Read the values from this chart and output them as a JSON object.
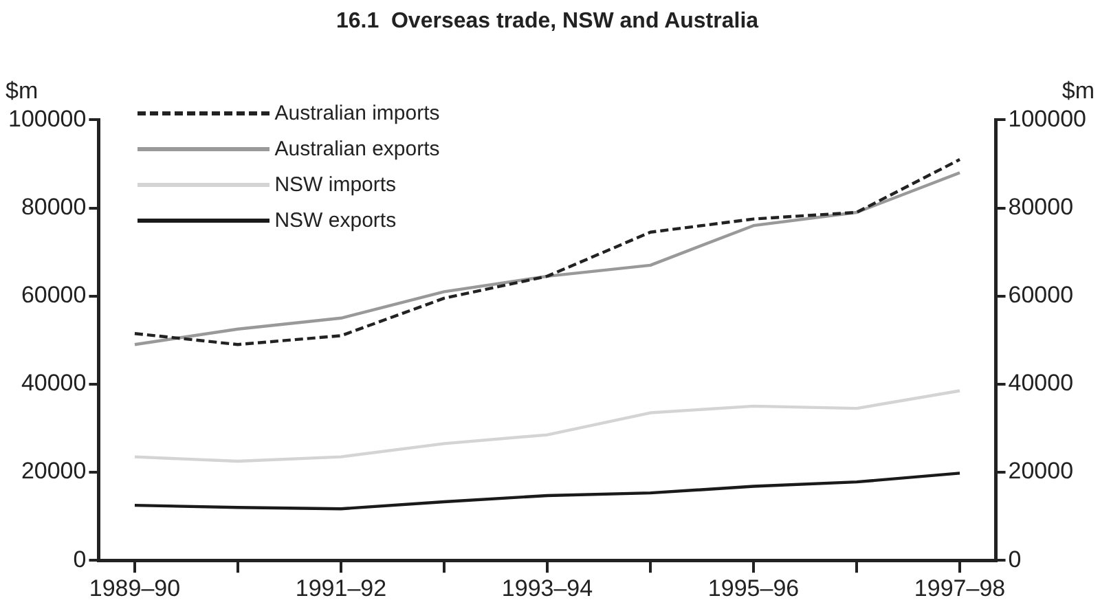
{
  "chart_data": {
    "type": "line",
    "title": "16.1  Overseas trade, NSW and Australia",
    "ylabel": "$m",
    "y2label": "$m",
    "categories": [
      "1989–90",
      null,
      "1991–92",
      null,
      "1993–94",
      null,
      "1995–96",
      null,
      "1997–98"
    ],
    "series": [
      {
        "name": "Australian imports",
        "color": "#222222",
        "line_style": "dashed",
        "values": [
          51500,
          49000,
          51000,
          59500,
          64500,
          74500,
          77500,
          79000,
          91000
        ]
      },
      {
        "name": "Australian exports",
        "color": "#999999",
        "values": [
          49000,
          52500,
          55000,
          61000,
          64500,
          67000,
          76000,
          79000,
          88000
        ]
      },
      {
        "name": "NSW imports",
        "color": "#d4d4d4",
        "values": [
          23500,
          22500,
          23500,
          26500,
          28500,
          33500,
          35000,
          34500,
          38500
        ]
      },
      {
        "name": "NSW exports",
        "color": "#1a1a1a",
        "values": [
          12500,
          12000,
          11700,
          13300,
          14700,
          15300,
          16800,
          17800,
          19800
        ]
      }
    ],
    "ylim": [
      0,
      100000
    ],
    "yticks": [
      0,
      20000,
      40000,
      60000,
      80000,
      100000
    ],
    "y2lim": [
      0,
      100000
    ],
    "y2ticks": [
      0,
      20000,
      40000,
      60000,
      80000,
      100000
    ],
    "grid": false,
    "legend": "top left",
    "marker": "none"
  }
}
